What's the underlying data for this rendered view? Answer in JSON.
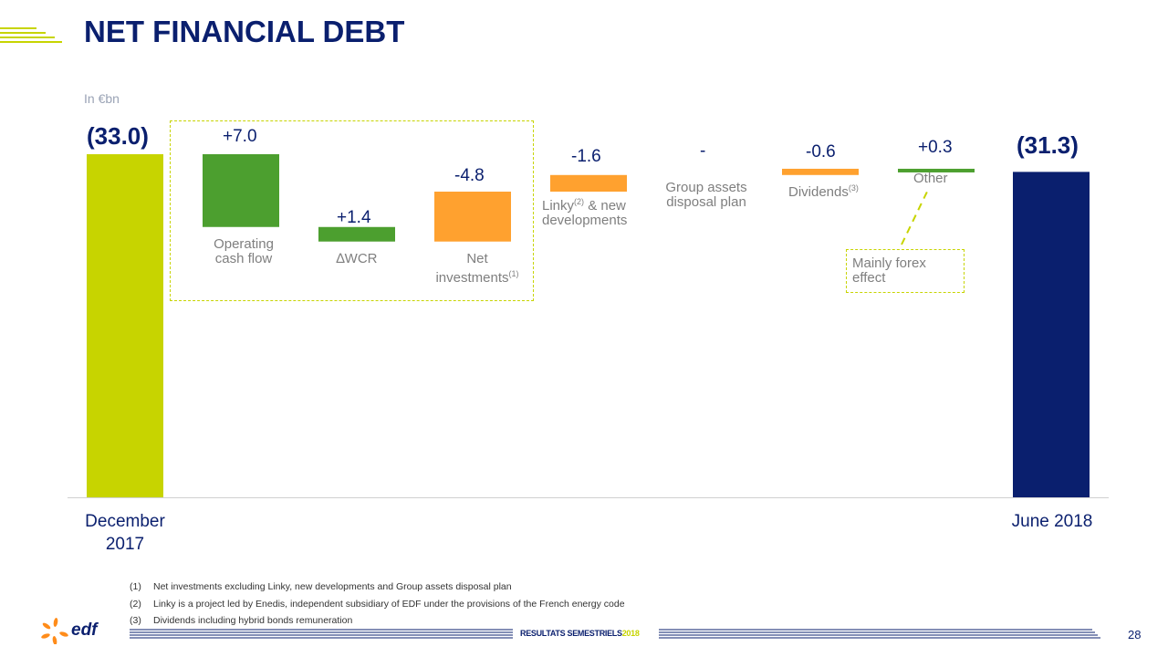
{
  "title": "NET FINANCIAL DEBT",
  "unit": "In €bn",
  "colors": {
    "navy": "#0a1f6e",
    "lime": "#c7d400",
    "green": "#4c9f2f",
    "orange": "#ffa12f",
    "grey_text": "#7f7f7f"
  },
  "chart_data": {
    "type": "bar",
    "subtype": "waterfall",
    "categories": [
      "December 2017",
      "Operating cash flow",
      "∆WCR",
      "Net investments(1)",
      "Linky(2) & new developments",
      "Group assets disposal plan",
      "Dividends(3)",
      "Other",
      "June 2018"
    ],
    "values": [
      -33.0,
      7.0,
      1.4,
      -4.8,
      -1.6,
      0.0,
      -0.6,
      0.3,
      -31.3
    ],
    "value_labels": [
      "(33.0)",
      "+7.0",
      "+1.4",
      "-4.8",
      "-1.6",
      "-",
      "-0.6",
      "+0.3",
      "(31.3)"
    ],
    "axis_labels": {
      "start_line1": "December",
      "start_line2": "2017",
      "end": "June 2018"
    },
    "bar_labels": {
      "ocf_line1": "Operating",
      "ocf_line2": "cash flow",
      "wcr": "∆WCR",
      "netinv_line1": "Net",
      "netinv_line2": "investments",
      "netinv_sup": "(1)",
      "linky_a": "Linky",
      "linky_sup": "(2)",
      "linky_b": " & new",
      "linky_line2": "developments",
      "disposal_line1": "Group assets",
      "disposal_line2": "disposal plan",
      "dividends": "Dividends",
      "dividends_sup": "(3)",
      "other": "Other"
    },
    "annotation_line1": "Mainly forex",
    "annotation_line2": "effect",
    "grid": false
  },
  "footnotes": [
    {
      "num": "(1)",
      "text": "Net investments excluding Linky, new developments and Group assets disposal plan"
    },
    {
      "num": "(2)",
      "text": "Linky is a project led by Enedis, independent subsidiary of EDF under the provisions of the French energy code"
    },
    {
      "num": "(3)",
      "text": "Dividends including hybrid bonds remuneration"
    }
  ],
  "footer": {
    "text": "RESULTATS SEMESTRIELS",
    "year": "2018",
    "page": "28",
    "logo_text": "edf"
  }
}
